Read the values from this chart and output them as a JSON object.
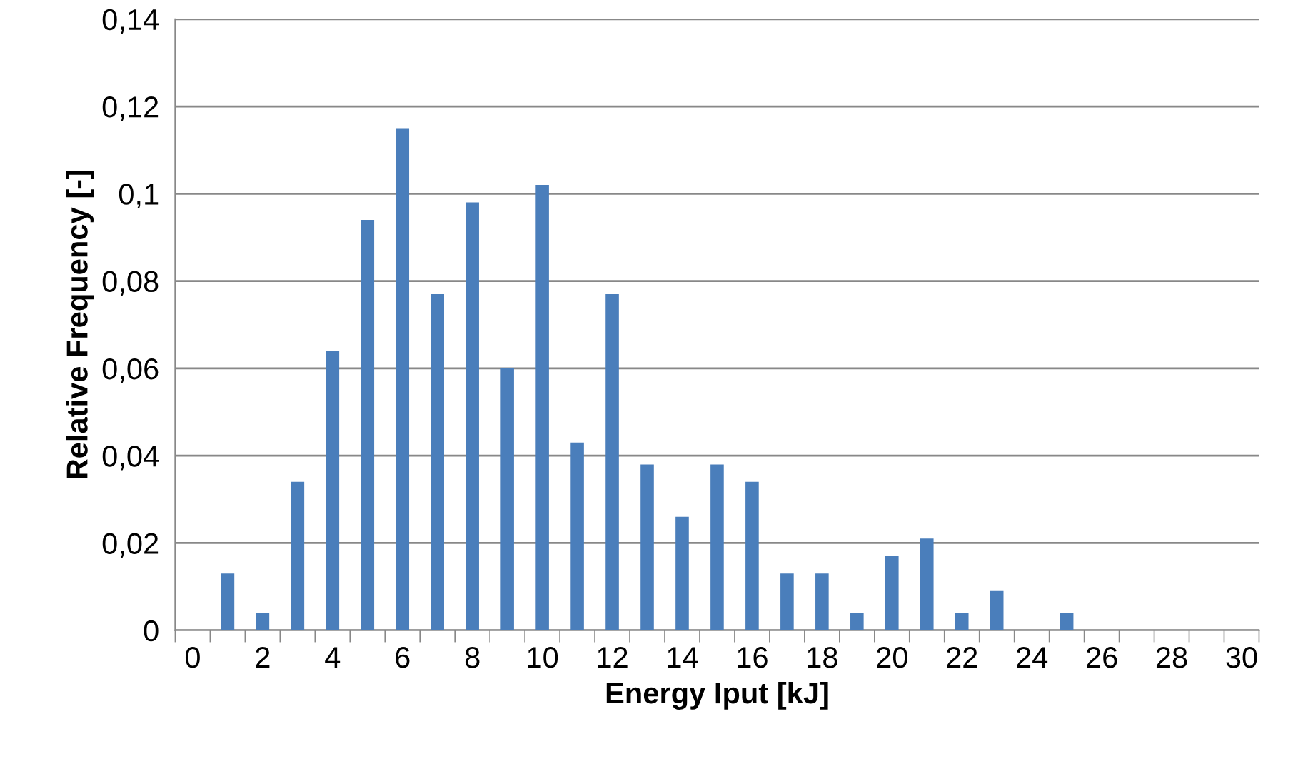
{
  "chart_data": {
    "type": "bar",
    "xlabel": "Energy Iput [kJ]",
    "ylabel": "Relative Frequency [-]",
    "categories": [
      "0",
      null,
      "2",
      null,
      "4",
      null,
      "6",
      null,
      "8",
      null,
      "10",
      null,
      "12",
      null,
      "14",
      null,
      "16",
      null,
      "18",
      null,
      "20",
      null,
      "22",
      null,
      "24",
      null,
      "26",
      null,
      "28",
      null,
      "30"
    ],
    "values": [
      0,
      0.013,
      0.004,
      0.034,
      0.064,
      0.094,
      0.115,
      0.077,
      0.098,
      0.06,
      0.102,
      0.043,
      0.077,
      0.038,
      0.026,
      0.038,
      0.034,
      0.013,
      0.013,
      0.004,
      0.017,
      0.021,
      0.004,
      0.009,
      0,
      0.004,
      0,
      0,
      0,
      0,
      0
    ],
    "color": "#4a7ebb",
    "ylim": [
      0,
      0.14
    ],
    "yticks": [
      {
        "value": 0,
        "label": "0"
      },
      {
        "value": 0.02,
        "label": "0,02"
      },
      {
        "value": 0.04,
        "label": "0,04"
      },
      {
        "value": 0.06,
        "label": "0,06"
      },
      {
        "value": 0.08,
        "label": "0,08"
      },
      {
        "value": 0.1,
        "label": "0,1"
      },
      {
        "value": 0.12,
        "label": "0,12"
      },
      {
        "value": 0.14,
        "label": "0,14"
      }
    ],
    "grid": "y"
  }
}
